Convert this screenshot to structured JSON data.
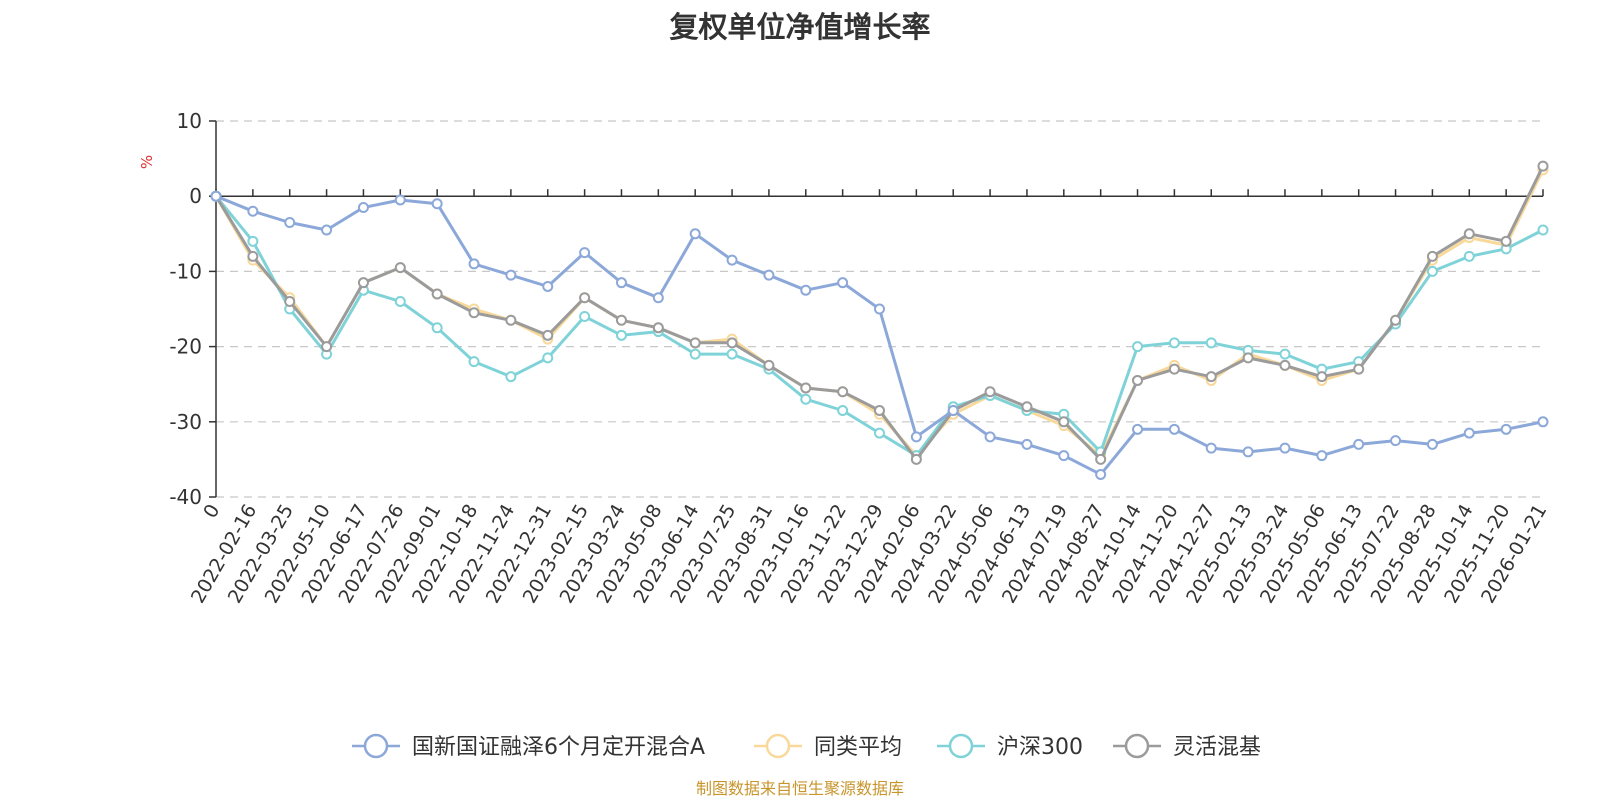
{
  "colors": {
    "fund": "#8ca8d9",
    "peer_avg": "#f8d99a",
    "hs300": "#7fd3d8",
    "flex_mix": "#9b9b9b",
    "grid": "#c8c8c8",
    "ylabel": "#e03030",
    "source": "#c8952c"
  },
  "chart_data": {
    "type": "line",
    "title": "复权单位净值增长率",
    "ylabel": "%",
    "ylim": [
      -40,
      10
    ],
    "yticks": [
      10,
      0,
      -10,
      -20,
      -30,
      -40
    ],
    "grid": true,
    "legend_position": "bottom-center",
    "xticks": [
      "0",
      "2022-02-16",
      "2022-03-25",
      "2022-05-10",
      "2022-06-17",
      "2022-07-26",
      "2022-09-01",
      "2022-10-18",
      "2022-11-24",
      "2022-12-31",
      "2023-02-15",
      "2023-03-24",
      "2023-05-08",
      "2023-06-14",
      "2023-07-25",
      "2023-08-31",
      "2023-10-16",
      "2023-11-22",
      "2023-12-29",
      "2024-02-06",
      "2024-03-22",
      "2024-05-06",
      "2024-06-13",
      "2024-07-19",
      "2024-08-27",
      "2024-10-14",
      "2024-11-20",
      "2024-12-27",
      "2025-02-13",
      "2025-03-24",
      "2025-05-06",
      "2025-06-13",
      "2025-07-22",
      "2025-08-28",
      "2025-10-14",
      "2025-11-20",
      "2026-01-21"
    ],
    "x_index": [
      0,
      1,
      2,
      3,
      4,
      5,
      6,
      7,
      8,
      9,
      10,
      11,
      12,
      13,
      14,
      15,
      16,
      17,
      18,
      19,
      20,
      21,
      22,
      23,
      24,
      25,
      26,
      27,
      28,
      29,
      30,
      31,
      32,
      33,
      34,
      35,
      36
    ],
    "series": [
      {
        "name": "国新国证融泽6个月定开混合A",
        "color_key": "fund",
        "values": [
          0,
          -2,
          -3.5,
          -4.5,
          -1.5,
          -0.5,
          -1,
          -9,
          -10.5,
          -12,
          -7.5,
          -11.5,
          -13.5,
          -5,
          -8.5,
          -10.5,
          -12.5,
          -11.5,
          -15,
          -32,
          -28.5,
          -32,
          -33,
          -34.5,
          -37,
          -31,
          -31,
          -33.5,
          -34,
          -33.5,
          -34.5,
          -33,
          -32.5,
          -33,
          -31.5,
          -31,
          -30
        ]
      },
      {
        "name": "同类平均",
        "color_key": "peer_avg",
        "values": [
          0,
          -8.5,
          -13.5,
          -20,
          -11.5,
          -9.5,
          -13,
          -15,
          -16.5,
          -19,
          -13.5,
          -16.5,
          -17.5,
          -19.5,
          -19,
          -22.5,
          -25.5,
          -26,
          -29,
          -34.5,
          -29,
          -26.5,
          -28.5,
          -30.5,
          -34.5,
          -24.5,
          -22.5,
          -24.5,
          -21,
          -22.5,
          -24.5,
          -23,
          -16.5,
          -8.5,
          -5.5,
          -6.5,
          3.5
        ]
      },
      {
        "name": "沪深300",
        "color_key": "hs300",
        "values": [
          0,
          -6,
          -15,
          -21,
          -12.5,
          -14,
          -17.5,
          -22,
          -24,
          -21.5,
          -16,
          -18.5,
          -18,
          -21,
          -21,
          -23,
          -27,
          -28.5,
          -31.5,
          -34.5,
          -28,
          -26.5,
          -28.5,
          -29,
          -34,
          -20,
          -19.5,
          -19.5,
          -20.5,
          -21,
          -23,
          -22,
          -17,
          -10,
          -8,
          -7,
          -4.5
        ]
      },
      {
        "name": "灵活混基",
        "color_key": "flex_mix",
        "values": [
          0,
          -8,
          -14,
          -20,
          -11.5,
          -9.5,
          -13,
          -15.5,
          -16.5,
          -18.5,
          -13.5,
          -16.5,
          -17.5,
          -19.5,
          -19.5,
          -22.5,
          -25.5,
          -26,
          -28.5,
          -35,
          -28.5,
          -26,
          -28,
          -30,
          -35,
          -24.5,
          -23,
          -24,
          -21.5,
          -22.5,
          -24,
          -23,
          -16.5,
          -8,
          -5,
          -6,
          4
        ]
      }
    ]
  },
  "source_note": "制图数据来自恒生聚源数据库"
}
